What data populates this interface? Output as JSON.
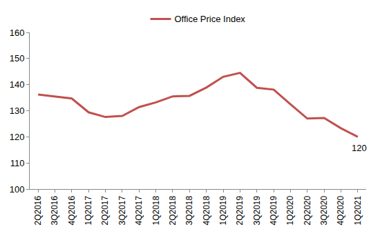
{
  "chart_data": {
    "type": "line",
    "categories": [
      "2Q2016",
      "3Q2016",
      "4Q2016",
      "1Q2017",
      "2Q2017",
      "3Q2017",
      "4Q2017",
      "1Q2018",
      "2Q2018",
      "3Q2018",
      "4Q2018",
      "1Q2019",
      "2Q2019",
      "3Q2019",
      "4Q2019",
      "1Q2020",
      "2Q2020",
      "3Q2020",
      "4Q2020",
      "1Q2021"
    ],
    "series": [
      {
        "name": "Office Price Index",
        "color": "#c0504d",
        "values": [
          136.2,
          135.5,
          134.7,
          129.4,
          127.6,
          128.0,
          131.4,
          133.2,
          135.5,
          135.7,
          138.9,
          143.0,
          144.5,
          138.8,
          138.1,
          132.5,
          127.0,
          127.2,
          123.3,
          120
        ]
      }
    ],
    "ylim": [
      100,
      160
    ],
    "yticks": [
      100,
      110,
      120,
      130,
      140,
      150,
      160
    ],
    "grid": false,
    "legend": "top",
    "annotations": [
      {
        "x": "1Q2021",
        "y": 120,
        "text": "120"
      }
    ]
  }
}
